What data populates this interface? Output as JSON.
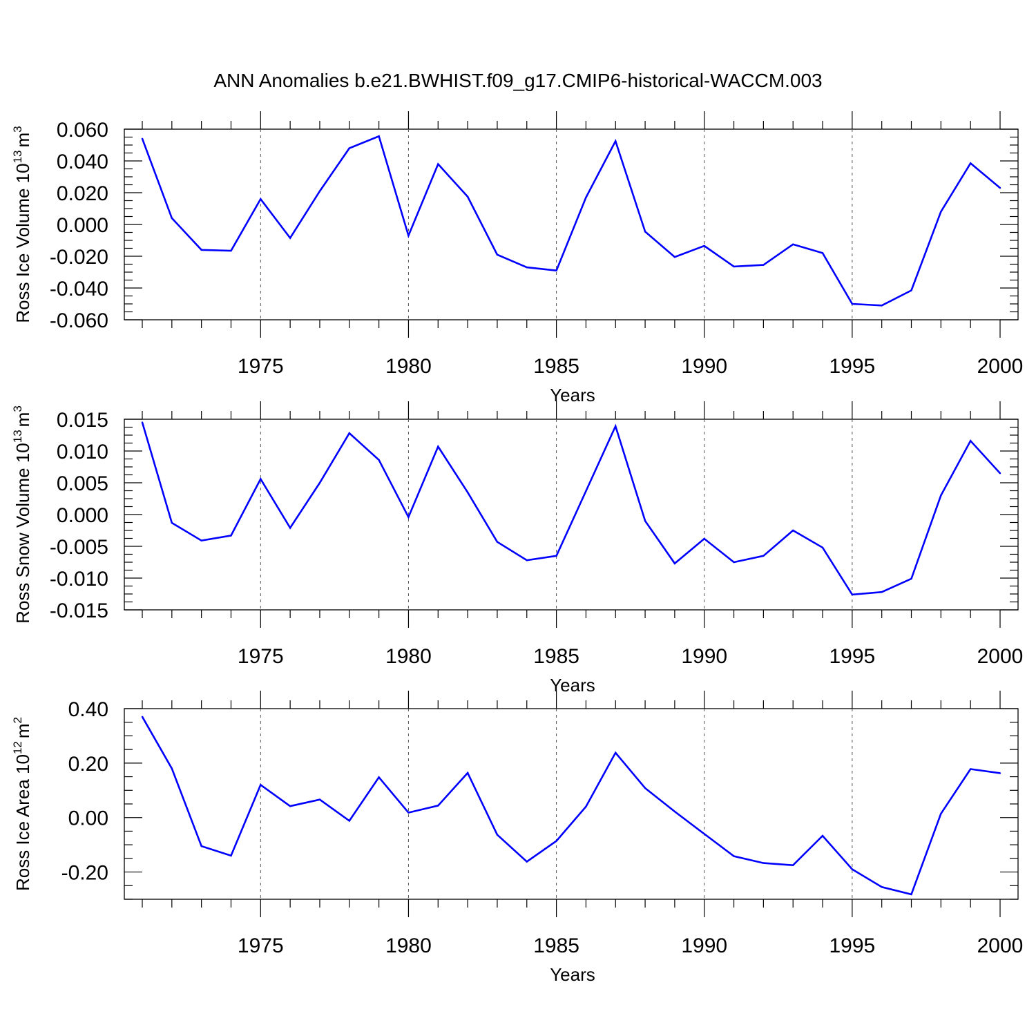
{
  "title": "ANN Anomalies b.e21.BWHIST.f09_g17.CMIP6-historical-WACCM.003",
  "line_color": "#0000ff",
  "chart_data": [
    {
      "type": "line",
      "ylabel_main": "Ross Ice Volume 10",
      "ylabel_exp": "13",
      "ylabel_unit": "m",
      "ylabel_unit_exp": "3",
      "xlabel": "Years",
      "xlim": [
        1971,
        2000
      ],
      "ylim": [
        -0.06,
        0.06
      ],
      "yticks": [
        0.06,
        0.04,
        0.02,
        0.0,
        -0.02,
        -0.04,
        -0.06
      ],
      "ytick_labels": [
        "0.060",
        "0.040",
        "0.020",
        "0.000",
        "-0.020",
        "-0.040",
        "-0.060"
      ],
      "xticks": [
        1975,
        1980,
        1985,
        1990,
        1995,
        2000
      ],
      "xtick_labels": [
        "1975",
        "1980",
        "1985",
        "1990",
        "1995",
        "2000"
      ],
      "x": [
        1971,
        1972,
        1973,
        1974,
        1975,
        1976,
        1977,
        1978,
        1979,
        1980,
        1981,
        1982,
        1983,
        1984,
        1985,
        1986,
        1987,
        1988,
        1989,
        1990,
        1991,
        1992,
        1993,
        1994,
        1995,
        1996,
        1997,
        1998,
        1999,
        2000
      ],
      "values": [
        0.054,
        0.004,
        -0.016,
        -0.0165,
        0.016,
        -0.0085,
        0.021,
        0.048,
        0.0555,
        -0.007,
        0.038,
        0.0175,
        -0.019,
        -0.027,
        -0.029,
        0.017,
        0.0525,
        -0.0045,
        -0.0205,
        -0.0135,
        -0.0265,
        -0.0255,
        -0.0125,
        -0.018,
        -0.05,
        -0.051,
        -0.0415,
        0.008,
        0.0385,
        0.023
      ]
    },
    {
      "type": "line",
      "ylabel_main": "Ross Snow Volume 10",
      "ylabel_exp": "13",
      "ylabel_unit": "m",
      "ylabel_unit_exp": "3",
      "xlabel": "Years",
      "xlim": [
        1971,
        2000
      ],
      "ylim": [
        -0.015,
        0.015
      ],
      "yticks": [
        0.015,
        0.01,
        0.005,
        0.0,
        -0.005,
        -0.01,
        -0.015
      ],
      "ytick_labels": [
        "0.015",
        "0.010",
        "0.005",
        "0.000",
        "-0.005",
        "-0.010",
        "-0.015"
      ],
      "xticks": [
        1975,
        1980,
        1985,
        1990,
        1995,
        2000
      ],
      "xtick_labels": [
        "1975",
        "1980",
        "1985",
        "1990",
        "1995",
        "2000"
      ],
      "x": [
        1971,
        1972,
        1973,
        1974,
        1975,
        1976,
        1977,
        1978,
        1979,
        1980,
        1981,
        1982,
        1983,
        1984,
        1985,
        1986,
        1987,
        1988,
        1989,
        1990,
        1991,
        1992,
        1993,
        1994,
        1995,
        1996,
        1997,
        1998,
        1999,
        2000
      ],
      "values": [
        0.0145,
        -0.0013,
        -0.0041,
        -0.0033,
        0.0056,
        -0.0021,
        0.005,
        0.0128,
        0.0086,
        -0.0004,
        0.0107,
        0.0035,
        -0.0043,
        -0.0072,
        -0.0065,
        0.0037,
        0.0139,
        -0.001,
        -0.0077,
        -0.0038,
        -0.0075,
        -0.0065,
        -0.0025,
        -0.0052,
        -0.0126,
        -0.0122,
        -0.0101,
        0.003,
        0.0116,
        0.0065
      ]
    },
    {
      "type": "line",
      "ylabel_main": "Ross Ice Area 10",
      "ylabel_exp": "12",
      "ylabel_unit": "m",
      "ylabel_unit_exp": "2",
      "xlabel": "Years",
      "xlim": [
        1971,
        2000
      ],
      "ylim": [
        -0.3,
        0.4
      ],
      "yticks": [
        0.4,
        0.2,
        0.0,
        -0.2
      ],
      "ytick_labels": [
        "0.40",
        "0.20",
        "0.00",
        "-0.20"
      ],
      "xticks": [
        1975,
        1980,
        1985,
        1990,
        1995,
        2000
      ],
      "xtick_labels": [
        "1975",
        "1980",
        "1985",
        "1990",
        "1995",
        "2000"
      ],
      "x": [
        1971,
        1972,
        1973,
        1974,
        1975,
        1976,
        1977,
        1978,
        1979,
        1980,
        1981,
        1982,
        1983,
        1984,
        1985,
        1986,
        1987,
        1988,
        1989,
        1990,
        1991,
        1992,
        1993,
        1994,
        1995,
        1996,
        1997,
        1998,
        1999,
        2000
      ],
      "values": [
        0.37,
        0.18,
        -0.105,
        -0.14,
        0.12,
        0.042,
        0.066,
        -0.012,
        0.148,
        0.018,
        0.044,
        0.164,
        -0.063,
        -0.162,
        -0.086,
        0.04,
        0.238,
        0.108,
        0.022,
        -0.06,
        -0.142,
        -0.167,
        -0.175,
        -0.067,
        -0.19,
        -0.255,
        -0.282,
        0.014,
        0.178,
        0.163
      ]
    }
  ]
}
